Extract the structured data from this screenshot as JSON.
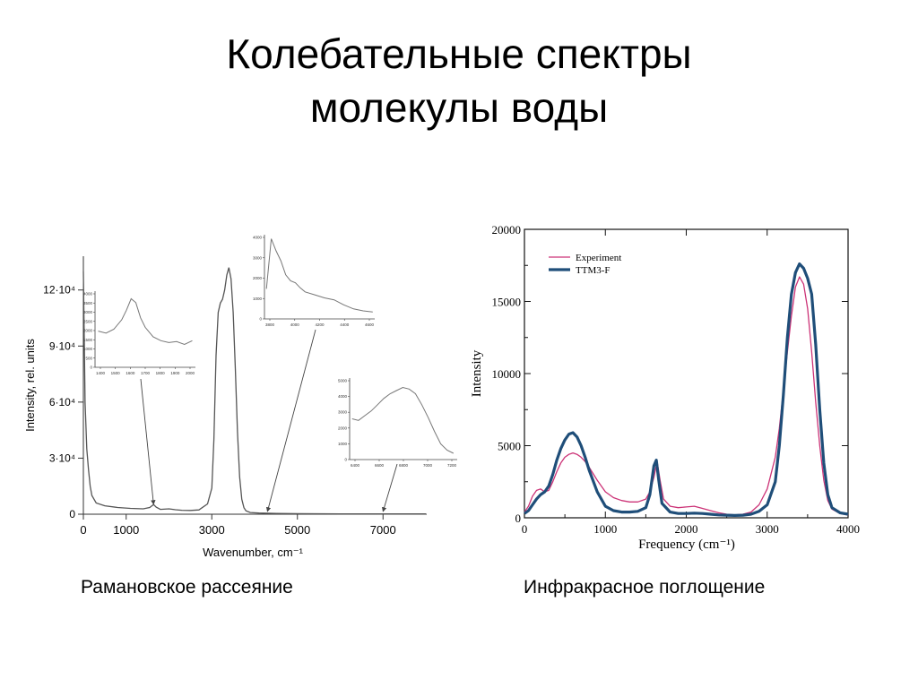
{
  "slide": {
    "title_line1": "Колебательные спектры",
    "title_line2": "молекулы воды",
    "caption_left": "Рамановское рассеяние",
    "caption_right": "Инфракрасное поглощение"
  },
  "chart_data": [
    {
      "type": "line",
      "xlabel": "Wavenumber, cm⁻¹",
      "ylabel": "Intensity, rel. units",
      "xlim": [
        0,
        8000
      ],
      "ylim": [
        0,
        140000
      ],
      "x_ticks": [
        0,
        1000,
        3000,
        5000,
        7000
      ],
      "x_tick_labels": [
        "0",
        "1000",
        "3000",
        "5000",
        "7000"
      ],
      "y_ticks": [
        0,
        30000,
        60000,
        90000,
        120000
      ],
      "y_tick_labels": [
        "0",
        "3·10⁴",
        "6·10⁴",
        "9·10⁴",
        "12·10⁴"
      ],
      "grid": false,
      "colors": {
        "main": "#555555",
        "inset": "#777777",
        "arrow": "#444444"
      },
      "series": [
        {
          "x": [
            0,
            40,
            80,
            120,
            160,
            200,
            300,
            500,
            800,
            1100,
            1400,
            1550,
            1640,
            1700,
            1800,
            2000,
            2150,
            2300,
            2500,
            2700,
            2900,
            3000,
            3050,
            3100,
            3150,
            3200,
            3250,
            3300,
            3350,
            3400,
            3450,
            3500,
            3550,
            3600,
            3650,
            3700,
            3750,
            3800,
            3900,
            4100,
            4500,
            5000,
            6000,
            7000,
            8000
          ],
          "y": [
            130000,
            60000,
            35000,
            24000,
            15000,
            10000,
            6000,
            4500,
            3600,
            3100,
            2900,
            3600,
            5200,
            3800,
            2600,
            2900,
            2400,
            2100,
            2000,
            2300,
            5500,
            14000,
            40000,
            85000,
            108000,
            113000,
            115000,
            120000,
            128000,
            132000,
            126000,
            108000,
            78000,
            44000,
            20000,
            8000,
            3500,
            1800,
            900,
            600,
            400,
            300,
            200,
            150,
            120
          ]
        }
      ],
      "insets": [
        {
          "name": "bending",
          "x_tick_labels": [
            "1400",
            "1500",
            "1600",
            "1700",
            "1800",
            "1900",
            "2000"
          ],
          "y_tick_labels": [
            "4000",
            "3500",
            "3000",
            "2500",
            "2000",
            "1500",
            "1000",
            "500",
            "0"
          ],
          "arrow_to_x": 1640,
          "x": [
            1400,
            1450,
            1500,
            1550,
            1580,
            1610,
            1640,
            1670,
            1700,
            1750,
            1800,
            1850,
            1900,
            1950,
            2000
          ],
          "y": [
            1900,
            1800,
            2000,
            2500,
            3000,
            3600,
            3400,
            2600,
            2100,
            1600,
            1400,
            1300,
            1350,
            1200,
            1400
          ]
        },
        {
          "name": "tail",
          "x_tick_labels": [
            "3800",
            "4000",
            "4200",
            "4400",
            "4600"
          ],
          "y_tick_labels": [
            "4000",
            "3000",
            "2000",
            "1000",
            "0"
          ],
          "arrow_to_x": 4300,
          "x": [
            3600,
            3650,
            3700,
            3750,
            3800,
            3850,
            3900,
            3950,
            4000,
            4100,
            4200,
            4300,
            4400,
            4500,
            4600,
            4700
          ],
          "y": [
            1500,
            4000,
            3400,
            2900,
            2200,
            1900,
            1800,
            1550,
            1350,
            1200,
            1050,
            950,
            700,
            500,
            400,
            350
          ]
        },
        {
          "name": "overtone",
          "x_tick_labels": [
            "6400",
            "6600",
            "6800",
            "7000",
            "7200"
          ],
          "y_tick_labels": [
            "5000",
            "4000",
            "3000",
            "2000",
            "1000",
            "0"
          ],
          "arrow_to_x": 7000,
          "x": [
            6400,
            6450,
            6500,
            6550,
            6600,
            6650,
            6700,
            6750,
            6800,
            6850,
            6900,
            6950,
            7000,
            7050,
            7100,
            7150,
            7200
          ],
          "y": [
            2600,
            2500,
            2800,
            3100,
            3500,
            3900,
            4200,
            4400,
            4600,
            4500,
            4200,
            3500,
            2700,
            1800,
            1000,
            600,
            400
          ]
        }
      ]
    },
    {
      "type": "line",
      "xlabel": "Frequency (cm⁻¹)",
      "ylabel": "Intensity",
      "xlim": [
        0,
        4000
      ],
      "ylim": [
        0,
        20000
      ],
      "x_ticks": [
        0,
        1000,
        2000,
        3000,
        4000
      ],
      "x_tick_labels": [
        "0",
        "1000",
        "2000",
        "3000",
        "4000"
      ],
      "y_ticks": [
        0,
        5000,
        10000,
        15000,
        20000
      ],
      "y_tick_labels": [
        "0",
        "5000",
        "10000",
        "15000",
        "20000"
      ],
      "grid": false,
      "legend": "top-left",
      "series": [
        {
          "name": "Experiment",
          "color": "#cc3377",
          "x": [
            0,
            50,
            100,
            150,
            200,
            250,
            300,
            350,
            400,
            450,
            500,
            550,
            600,
            650,
            700,
            750,
            800,
            900,
            1000,
            1100,
            1200,
            1300,
            1400,
            1500,
            1550,
            1600,
            1640,
            1680,
            1720,
            1800,
            1900,
            2000,
            2100,
            2200,
            2300,
            2400,
            2500,
            2600,
            2700,
            2800,
            2900,
            3000,
            3100,
            3150,
            3200,
            3250,
            3300,
            3350,
            3400,
            3450,
            3500,
            3550,
            3600,
            3650,
            3700,
            3750,
            3800,
            3900,
            4000
          ],
          "y": [
            400,
            800,
            1500,
            1900,
            2000,
            1800,
            1900,
            2500,
            3200,
            3800,
            4200,
            4400,
            4500,
            4400,
            4200,
            3900,
            3500,
            2600,
            1800,
            1400,
            1200,
            1100,
            1100,
            1300,
            1800,
            2800,
            3900,
            2500,
            1300,
            800,
            700,
            750,
            800,
            650,
            500,
            350,
            250,
            200,
            250,
            400,
            900,
            2000,
            4200,
            6200,
            8800,
            11500,
            14000,
            16000,
            16700,
            16200,
            14500,
            11500,
            8000,
            5000,
            2600,
            1200,
            600,
            300,
            200
          ]
        },
        {
          "name": "TTM3-F",
          "color": "#1f4e79",
          "x": [
            0,
            50,
            100,
            150,
            200,
            250,
            300,
            350,
            400,
            450,
            500,
            550,
            600,
            650,
            700,
            750,
            800,
            900,
            1000,
            1100,
            1200,
            1300,
            1400,
            1500,
            1550,
            1600,
            1630,
            1660,
            1700,
            1800,
            1900,
            2000,
            2100,
            2200,
            2300,
            2400,
            2500,
            2600,
            2700,
            2800,
            2900,
            3000,
            3100,
            3150,
            3200,
            3250,
            3300,
            3350,
            3400,
            3450,
            3500,
            3550,
            3600,
            3650,
            3700,
            3750,
            3800,
            3900,
            4000
          ],
          "y": [
            300,
            500,
            900,
            1300,
            1600,
            1800,
            2200,
            3000,
            4000,
            4800,
            5400,
            5800,
            5900,
            5600,
            5000,
            4200,
            3300,
            1800,
            800,
            500,
            400,
            400,
            450,
            700,
            1600,
            3600,
            4000,
            2600,
            1000,
            400,
            300,
            300,
            320,
            300,
            250,
            200,
            180,
            160,
            180,
            250,
            450,
            900,
            2500,
            5000,
            8500,
            12500,
            15500,
            17000,
            17600,
            17300,
            16600,
            15500,
            12000,
            7500,
            3800,
            1600,
            700,
            350,
            250
          ]
        }
      ]
    }
  ]
}
